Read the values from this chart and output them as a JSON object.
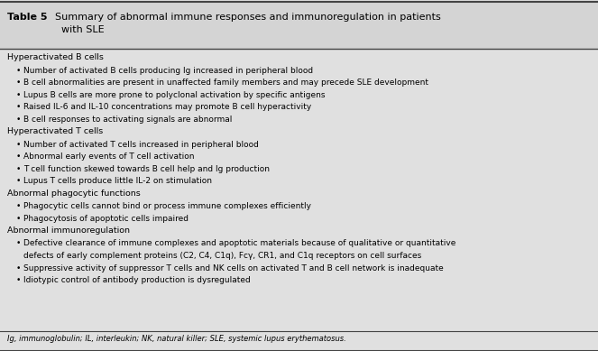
{
  "title_bold": "Table 5",
  "title_normal": " Summary of abnormal immune responses and immunoregulation in patients\nwith SLE",
  "background_color": "#d4d4d4",
  "content_bg": "#e0e0e0",
  "sections": [
    {
      "header": "Hyperactivated B cells",
      "bullets": [
        "Number of activated B cells producing Ig increased in peripheral blood",
        "B cell abnormalities are present in unaffected family members and may precede SLE development",
        "Lupus B cells are more prone to polyclonal activation by specific antigens",
        "Raised IL-6 and IL-10 concentrations may promote B cell hyperactivity",
        "B cell responses to activating signals are abnormal"
      ]
    },
    {
      "header": "Hyperactivated T cells",
      "bullets": [
        "Number of activated T cells increased in peripheral blood",
        "Abnormal early events of T cell activation",
        "T cell function skewed towards B cell help and Ig production",
        "Lupus T cells produce little IL-2 on stimulation"
      ]
    },
    {
      "header": "Abnormal phagocytic functions",
      "bullets": [
        "Phagocytic cells cannot bind or process immune complexes efficiently",
        "Phagocytosis of apoptotic cells impaired"
      ]
    },
    {
      "header": "Abnormal immunoregulation",
      "bullets": [
        "Defective clearance of immune complexes and apoptotic materials because of qualitative or quantitative\ndefects of early complement proteins (C2, C4, C1q), Fcγ, CR1, and C1q receptors on cell surfaces",
        "Suppressive activity of suppressor T cells and NK cells on activated T and B cell network is inadequate",
        "Idiotypic control of antibody production is dysregulated"
      ]
    }
  ],
  "footnote": "Ig, immunoglobulin; IL, interleukin; NK, natural killer; SLE, systemic lupus erythematosus.",
  "border_color": "#444444",
  "title_fontsize": 8.0,
  "header_fontsize": 6.8,
  "bullet_fontsize": 6.5,
  "footnote_fontsize": 6.0,
  "line_sep_color": "#888888"
}
